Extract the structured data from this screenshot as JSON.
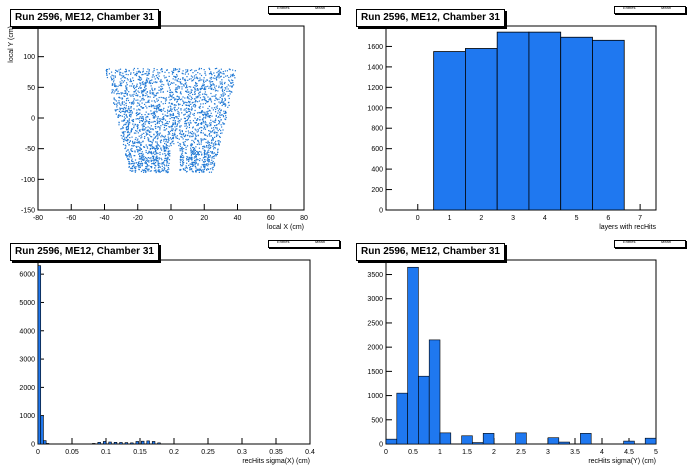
{
  "panels": [
    {
      "title": "Run 2596, ME12, Chamber 31",
      "stats_labels": [
        "Entries",
        "Mean"
      ],
      "chart_data": {
        "type": "scatter",
        "xlabel": "local X (cm)",
        "ylabel": "local Y (cm)",
        "xlim": [
          -80,
          80
        ],
        "ylim": [
          -150,
          150
        ],
        "x_ticks": [
          -80,
          -60,
          -40,
          -20,
          0,
          20,
          40,
          60,
          80
        ],
        "y_ticks": [
          -150,
          -100,
          -50,
          0,
          50,
          100,
          150
        ],
        "tick_labels_x": [
          "-80",
          "-60",
          "-40",
          "-20",
          "0",
          "20",
          "40",
          "60",
          "80"
        ],
        "tick_labels_y": [
          "-150",
          "-100",
          "-50",
          "0",
          "50",
          "100",
          "150"
        ],
        "region": {
          "y_top": 82,
          "y_bottom": -88,
          "x_top_half_width": 40,
          "x_bottom_half_width": 25
        },
        "marker_color": "#1f78d4"
      }
    },
    {
      "title": "Run 2596, ME12, Chamber 31",
      "stats_labels": [
        "Entries",
        "Mean"
      ],
      "chart_data": {
        "type": "bar",
        "xlabel": "layers with recHits",
        "ylabel": "",
        "xlim": [
          -1,
          7.5
        ],
        "ylim": [
          0,
          1800
        ],
        "x_ticks": [
          0,
          1,
          2,
          3,
          4,
          5,
          6,
          7
        ],
        "y_ticks": [
          0,
          200,
          400,
          600,
          800,
          1000,
          1200,
          1400,
          1600,
          1800
        ],
        "tick_labels_x": [
          "0",
          "1",
          "2",
          "3",
          "4",
          "5",
          "6",
          "7"
        ],
        "tick_labels_y": [
          "0",
          "200",
          "400",
          "600",
          "800",
          "1000",
          "1200",
          "1400",
          "1600",
          "1800"
        ],
        "bins": [
          [
            0.5,
            1.5
          ],
          [
            1.5,
            2.5
          ],
          [
            2.5,
            3.5
          ],
          [
            3.5,
            4.5
          ],
          [
            4.5,
            5.5
          ],
          [
            5.5,
            6.5
          ]
        ],
        "values": [
          1550,
          1580,
          1740,
          1740,
          1690,
          1660
        ],
        "fill": "#1f78f0"
      }
    },
    {
      "title": "Run 2596, ME12, Chamber 31",
      "stats_labels": [
        "Entries",
        "Mean"
      ],
      "chart_data": {
        "type": "bar",
        "xlabel": "recHits sigma(X) (cm)",
        "ylabel": "",
        "xlim": [
          0,
          0.4
        ],
        "ylim": [
          0,
          6500
        ],
        "x_ticks": [
          0,
          0.05,
          0.1,
          0.15,
          0.2,
          0.25,
          0.3,
          0.35,
          0.4
        ],
        "y_ticks": [
          0,
          1000,
          2000,
          3000,
          4000,
          5000,
          6000
        ],
        "tick_labels_x": [
          "0",
          "0.05",
          "0.1",
          "0.15",
          "0.2",
          "0.25",
          "0.3",
          "0.35",
          "0.4"
        ],
        "tick_labels_y": [
          "0",
          "1000",
          "2000",
          "3000",
          "4000",
          "5000",
          "6000"
        ],
        "bin_width": 0.004,
        "bin_starts": [
          0,
          0.004,
          0.008,
          0.012,
          0.08,
          0.088,
          0.096,
          0.104,
          0.112,
          0.12,
          0.128,
          0.136,
          0.144,
          0.152,
          0.16,
          0.168,
          0.176
        ],
        "values": [
          6300,
          1000,
          120,
          20,
          20,
          60,
          90,
          70,
          60,
          55,
          50,
          40,
          90,
          100,
          110,
          90,
          40
        ],
        "fill": "#1f78f0"
      }
    },
    {
      "title": "Run 2596, ME12, Chamber 31",
      "stats_labels": [
        "Entries",
        "Mean"
      ],
      "chart_data": {
        "type": "bar",
        "xlabel": "recHits sigma(Y) (cm)",
        "ylabel": "",
        "xlim": [
          0,
          5
        ],
        "ylim": [
          0,
          3800
        ],
        "x_ticks": [
          0,
          0.5,
          1,
          1.5,
          2,
          2.5,
          3,
          3.5,
          4,
          4.5,
          5
        ],
        "y_ticks": [
          0,
          500,
          1000,
          1500,
          2000,
          2500,
          3000,
          3500
        ],
        "tick_labels_x": [
          "0",
          "0.5",
          "1",
          "1.5",
          "2",
          "2.5",
          "3",
          "3.5",
          "4",
          "4.5",
          "5"
        ],
        "tick_labels_y": [
          "0",
          "500",
          "1000",
          "1500",
          "2000",
          "2500",
          "3000",
          "3500"
        ],
        "bin_width": 0.2,
        "bin_starts": [
          0,
          0.2,
          0.4,
          0.6,
          0.8,
          1.0,
          1.2,
          1.4,
          1.6,
          1.8,
          2.0,
          2.2,
          2.4,
          2.6,
          2.8,
          3.0,
          3.2,
          3.4,
          3.6,
          3.8,
          4.0,
          4.2,
          4.4,
          4.6,
          4.8
        ],
        "values": [
          100,
          1050,
          3650,
          1400,
          2150,
          230,
          0,
          170,
          30,
          220,
          0,
          0,
          230,
          0,
          0,
          130,
          40,
          0,
          220,
          0,
          0,
          0,
          60,
          0,
          120
        ],
        "fill": "#1f78f0"
      }
    }
  ]
}
